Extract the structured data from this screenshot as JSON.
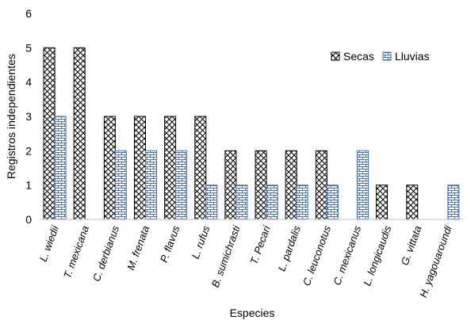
{
  "chart_data": {
    "type": "bar",
    "title": "",
    "xlabel": "Especies",
    "ylabel": "Registros independientes",
    "ylim": [
      0,
      6
    ],
    "yticks": [
      0,
      1,
      2,
      3,
      4,
      5,
      6
    ],
    "grid": false,
    "legend_position": "top-right",
    "categories": [
      "L. wiedii",
      "T. mexicana",
      "C. derbianus",
      "M. frenata",
      "P. flavus",
      "L. rufus",
      "B. sumichrasti",
      "T. Pecari",
      "L. pardalis",
      "C. leuconotus",
      "C. mexicanus",
      "L. longicaudis",
      "G. vittata",
      "H. yagouaroundi"
    ],
    "series": [
      {
        "name": "Secas",
        "values": [
          5,
          5,
          3,
          3,
          3,
          3,
          2,
          2,
          2,
          2,
          0,
          1,
          1,
          0
        ],
        "color": "#000000",
        "pattern": "crosshatch"
      },
      {
        "name": "Lluvias",
        "values": [
          3,
          0,
          2,
          2,
          2,
          1,
          1,
          1,
          1,
          1,
          2,
          0,
          0,
          1
        ],
        "color": "#4472c4",
        "pattern": "brick"
      }
    ]
  }
}
